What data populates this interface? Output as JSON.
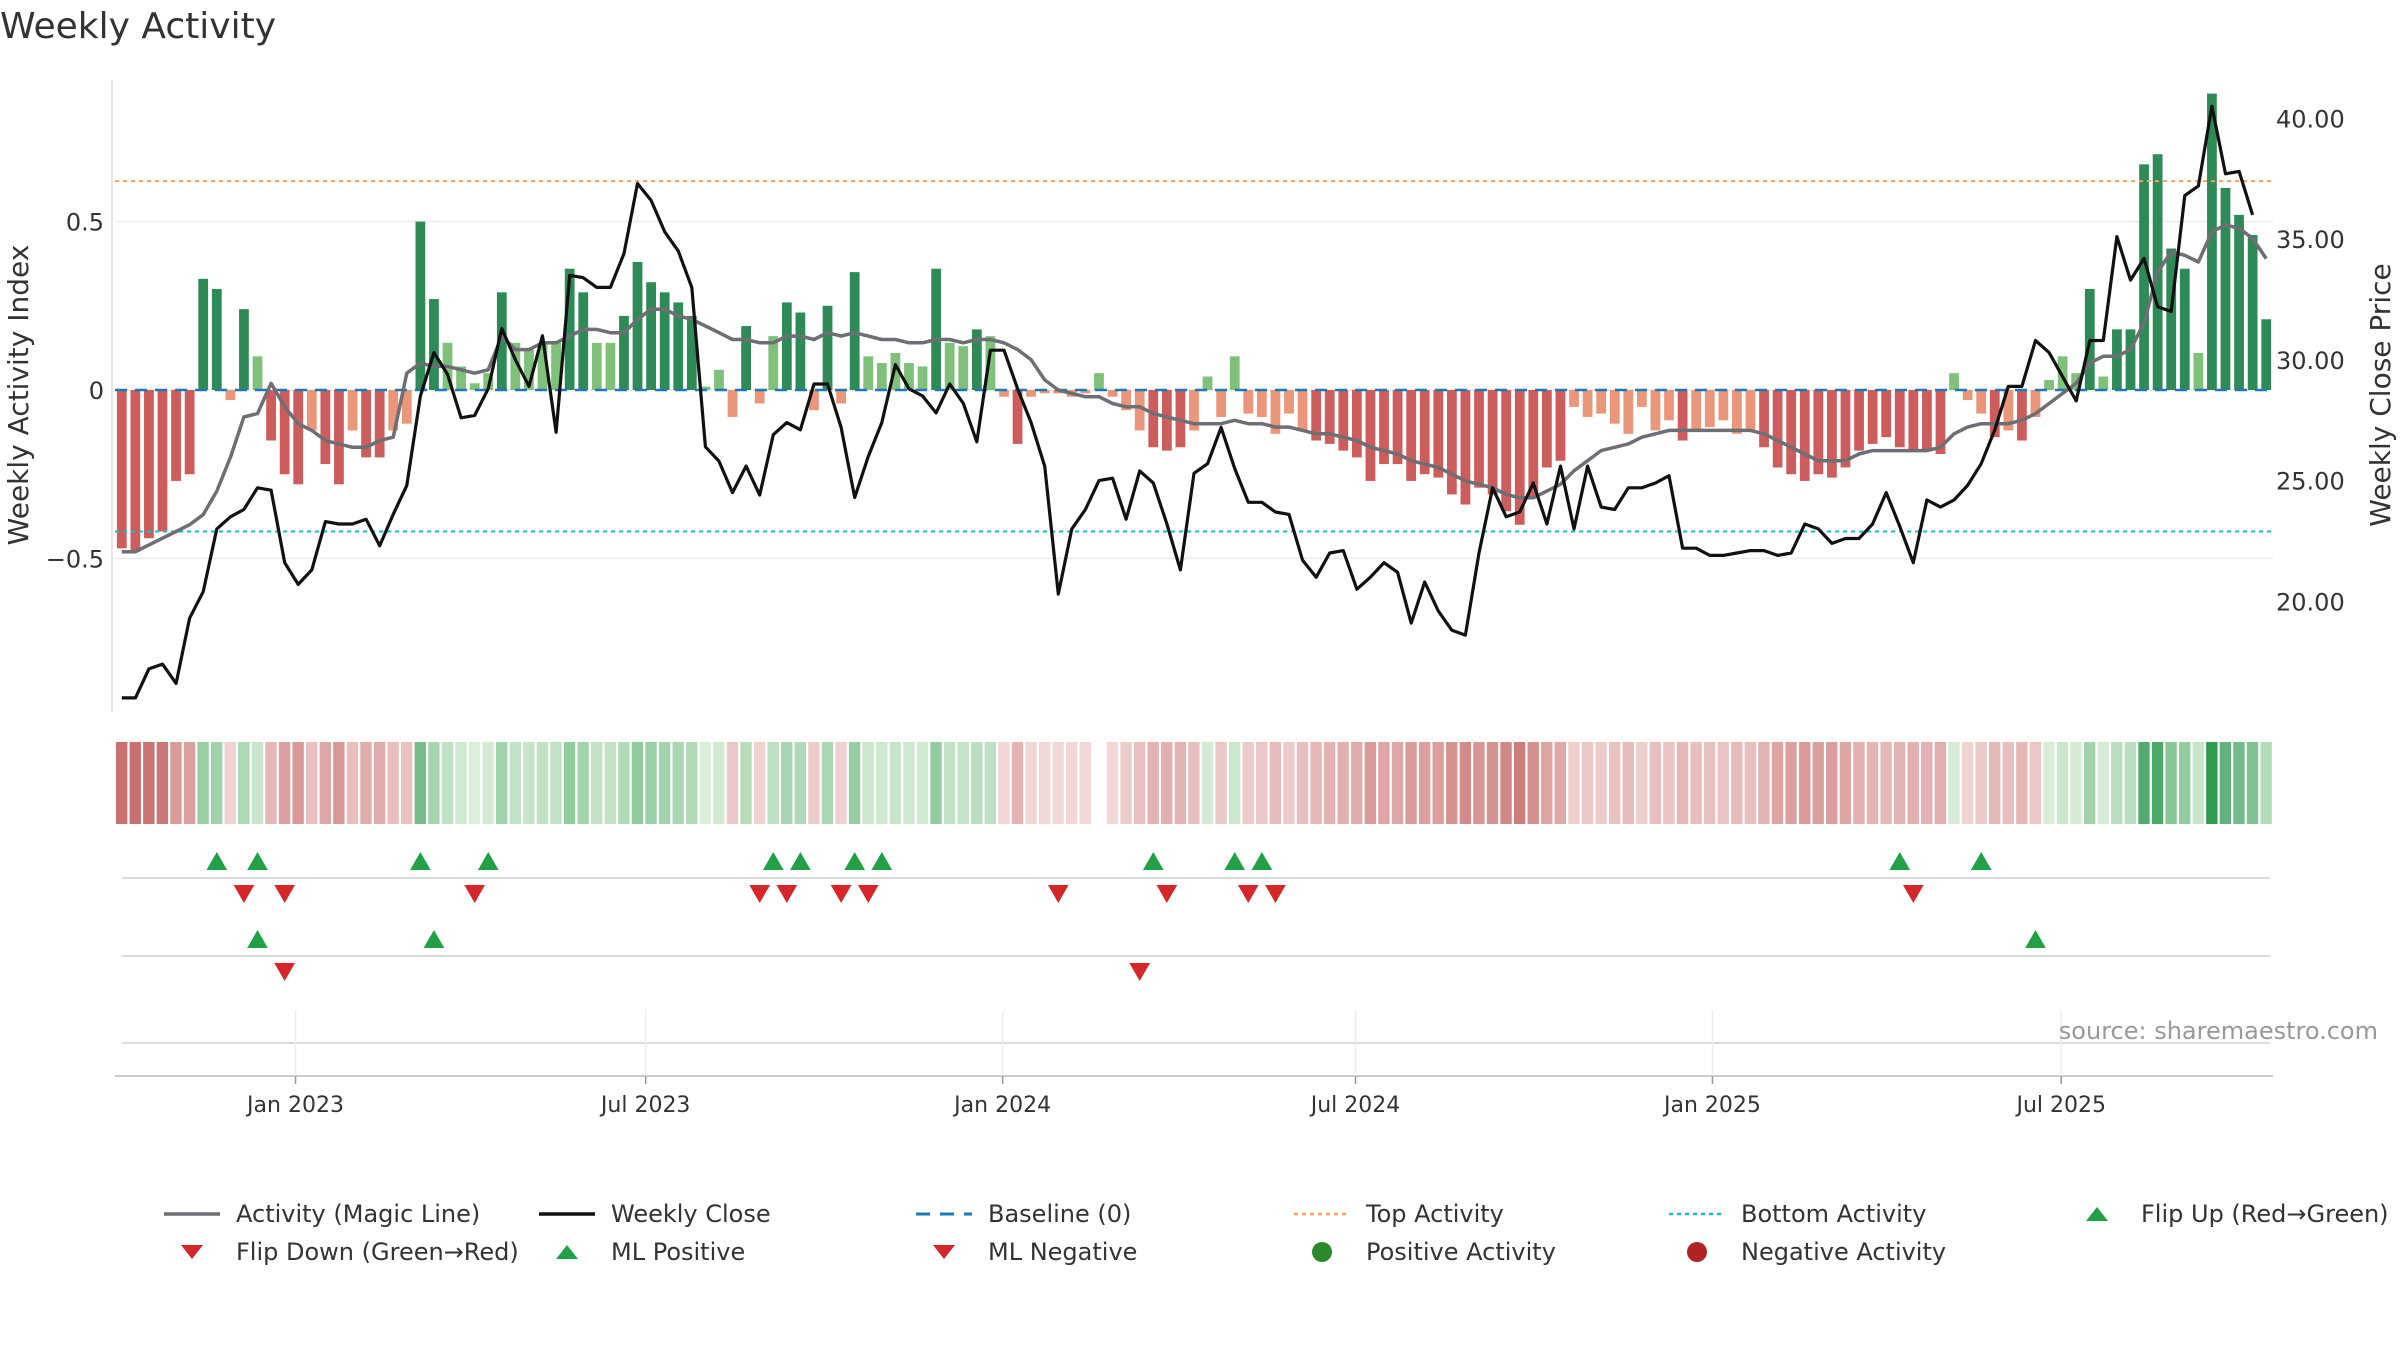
{
  "chart_data": {
    "type": "bar",
    "title": "Weekly Activity",
    "ylabel": "Weekly Activity Index",
    "y2label": "Weekly Close Price",
    "ylim": [
      -0.95,
      0.95
    ],
    "y2lim": [
      15.5,
      42.0
    ],
    "yticks": [
      {
        "v": 0.5,
        "label": "0.5"
      },
      {
        "v": 0,
        "label": "0"
      },
      {
        "v": -0.5,
        "label": "−0.5"
      }
    ],
    "y2ticks": [
      {
        "v": 40,
        "label": "40.00"
      },
      {
        "v": 35,
        "label": "35.00"
      },
      {
        "v": 30,
        "label": "30.00"
      },
      {
        "v": 25,
        "label": "25.00"
      },
      {
        "v": 20,
        "label": "20.00"
      }
    ],
    "x_axis": {
      "start": "2022-10-03",
      "weeks": 157
    },
    "xticks": [
      {
        "week": 13.3,
        "label": "Jan 2023"
      },
      {
        "week": 39.1,
        "label": "Jul 2023"
      },
      {
        "week": 65.4,
        "label": "Jan 2024"
      },
      {
        "week": 91.4,
        "label": "Jul 2024"
      },
      {
        "week": 117.7,
        "label": "Jan 2025"
      },
      {
        "week": 143.4,
        "label": "Jul 2025"
      }
    ],
    "top_activity": 0.62,
    "bottom_activity": -0.42,
    "weekly_activity": [
      -0.47,
      -0.48,
      -0.44,
      -0.42,
      -0.27,
      -0.25,
      0.33,
      0.3,
      -0.03,
      0.24,
      0.1,
      -0.15,
      -0.25,
      -0.28,
      -0.12,
      -0.22,
      -0.28,
      -0.12,
      -0.2,
      -0.2,
      -0.12,
      -0.1,
      0.5,
      0.27,
      0.14,
      0.07,
      0.02,
      0.05,
      0.29,
      0.14,
      0.12,
      0.14,
      0.14,
      0.36,
      0.29,
      0.14,
      0.14,
      0.22,
      0.38,
      0.32,
      0.29,
      0.26,
      0.22,
      0.01,
      0.06,
      -0.08,
      0.19,
      -0.04,
      0.16,
      0.26,
      0.23,
      -0.06,
      0.25,
      -0.04,
      0.35,
      0.1,
      0.08,
      0.11,
      0.08,
      0.07,
      0.36,
      0.14,
      0.13,
      0.18,
      0.16,
      -0.02,
      -0.16,
      -0.02,
      -0.01,
      -0.01,
      -0.02,
      -0.01,
      0.05,
      -0.02,
      -0.06,
      -0.12,
      -0.17,
      -0.18,
      -0.17,
      -0.12,
      0.04,
      -0.08,
      0.1,
      -0.07,
      -0.08,
      -0.13,
      -0.07,
      -0.12,
      -0.15,
      -0.16,
      -0.18,
      -0.2,
      -0.27,
      -0.22,
      -0.22,
      -0.27,
      -0.25,
      -0.26,
      -0.31,
      -0.34,
      -0.29,
      -0.31,
      -0.36,
      -0.4,
      -0.32,
      -0.23,
      -0.21,
      -0.05,
      -0.08,
      -0.07,
      -0.1,
      -0.13,
      -0.05,
      -0.12,
      -0.09,
      -0.15,
      -0.12,
      -0.11,
      -0.09,
      -0.13,
      -0.12,
      -0.17,
      -0.23,
      -0.25,
      -0.27,
      -0.25,
      -0.26,
      -0.23,
      -0.18,
      -0.16,
      -0.14,
      -0.17,
      -0.18,
      -0.18,
      -0.19,
      0.05,
      -0.03,
      -0.07,
      -0.14,
      -0.12,
      -0.15,
      -0.08,
      0.03,
      0.1,
      0.05,
      0.3,
      0.04,
      0.18,
      0.18,
      0.67,
      0.7,
      0.42,
      0.36,
      0.11,
      0.88,
      0.6,
      0.52,
      0.46,
      0.21
    ],
    "magic_line": [
      -0.48,
      -0.48,
      -0.46,
      -0.44,
      -0.42,
      -0.4,
      -0.37,
      -0.3,
      -0.2,
      -0.08,
      -0.07,
      0.02,
      -0.05,
      -0.1,
      -0.12,
      -0.15,
      -0.16,
      -0.17,
      -0.17,
      -0.15,
      -0.14,
      0.05,
      0.08,
      0.07,
      0.07,
      0.06,
      0.05,
      0.06,
      0.16,
      0.12,
      0.12,
      0.14,
      0.14,
      0.16,
      0.18,
      0.18,
      0.17,
      0.17,
      0.21,
      0.24,
      0.24,
      0.22,
      0.21,
      0.19,
      0.17,
      0.15,
      0.15,
      0.14,
      0.14,
      0.16,
      0.16,
      0.15,
      0.17,
      0.16,
      0.17,
      0.16,
      0.15,
      0.15,
      0.14,
      0.14,
      0.15,
      0.15,
      0.14,
      0.15,
      0.15,
      0.14,
      0.12,
      0.09,
      0.03,
      0.0,
      -0.01,
      -0.02,
      -0.02,
      -0.04,
      -0.05,
      -0.05,
      -0.07,
      -0.08,
      -0.09,
      -0.1,
      -0.1,
      -0.1,
      -0.09,
      -0.1,
      -0.1,
      -0.11,
      -0.11,
      -0.12,
      -0.13,
      -0.13,
      -0.14,
      -0.15,
      -0.17,
      -0.18,
      -0.19,
      -0.21,
      -0.22,
      -0.23,
      -0.25,
      -0.27,
      -0.28,
      -0.29,
      -0.31,
      -0.32,
      -0.32,
      -0.3,
      -0.28,
      -0.24,
      -0.21,
      -0.18,
      -0.17,
      -0.16,
      -0.14,
      -0.13,
      -0.12,
      -0.12,
      -0.12,
      -0.12,
      -0.12,
      -0.12,
      -0.12,
      -0.13,
      -0.15,
      -0.17,
      -0.19,
      -0.21,
      -0.21,
      -0.21,
      -0.19,
      -0.18,
      -0.18,
      -0.18,
      -0.18,
      -0.18,
      -0.17,
      -0.13,
      -0.11,
      -0.1,
      -0.1,
      -0.1,
      -0.09,
      -0.07,
      -0.04,
      -0.01,
      0.02,
      0.08,
      0.1,
      0.1,
      0.12,
      0.2,
      0.35,
      0.41,
      0.4,
      0.38,
      0.47,
      0.49,
      0.48,
      0.45,
      0.39
    ],
    "weekly_close": [
      16.0,
      16.0,
      17.2,
      17.4,
      16.6,
      19.3,
      20.4,
      23.0,
      23.5,
      23.8,
      24.7,
      24.6,
      21.6,
      20.7,
      21.3,
      23.3,
      23.2,
      23.2,
      23.4,
      22.3,
      23.6,
      24.8,
      28.5,
      30.3,
      29.4,
      27.6,
      27.7,
      28.8,
      31.3,
      30.0,
      28.9,
      31.0,
      27.0,
      33.5,
      33.4,
      33.0,
      33.0,
      34.4,
      37.3,
      36.6,
      35.3,
      34.5,
      33.0,
      26.4,
      25.8,
      24.5,
      25.6,
      24.4,
      26.9,
      27.4,
      27.1,
      29.0,
      29.0,
      27.2,
      24.3,
      26.0,
      27.4,
      29.8,
      28.8,
      28.5,
      27.8,
      29.0,
      28.2,
      26.6,
      30.4,
      30.4,
      28.8,
      27.4,
      25.6,
      20.3,
      23.0,
      23.8,
      25.0,
      25.1,
      23.4,
      25.4,
      24.9,
      23.2,
      21.3,
      25.3,
      25.7,
      27.2,
      25.5,
      24.1,
      24.1,
      23.7,
      23.6,
      21.7,
      21.0,
      22.0,
      22.1,
      20.5,
      21.0,
      21.6,
      21.2,
      19.1,
      20.8,
      19.6,
      18.8,
      18.6,
      22.0,
      24.7,
      23.5,
      23.7,
      24.9,
      23.2,
      25.6,
      23.0,
      25.6,
      23.9,
      23.8,
      24.7,
      24.7,
      24.9,
      25.2,
      22.2,
      22.2,
      21.9,
      21.9,
      22.0,
      22.1,
      22.1,
      21.9,
      22.0,
      23.2,
      23.0,
      22.4,
      22.6,
      22.6,
      23.2,
      24.5,
      23.1,
      21.6,
      24.2,
      23.9,
      24.2,
      24.8,
      25.7,
      27.1,
      28.9,
      28.9,
      30.8,
      30.3,
      29.3,
      28.3,
      30.8,
      30.8,
      35.1,
      33.3,
      34.2,
      32.2,
      32.0,
      36.8,
      37.2,
      40.5,
      37.7,
      37.8,
      36.0
    ],
    "flip_up_row1": [
      7.0,
      10.0,
      22.0,
      27.0,
      48.0,
      50.0,
      54.0,
      56.0,
      76.0,
      82.0,
      84.0,
      131.0,
      137.0
    ],
    "flip_down_row1": [
      9.0,
      12.0,
      26.0,
      47.0,
      49.0,
      53.0,
      55.0,
      69.0,
      77.0,
      83.0,
      85.0,
      132.0
    ],
    "ml_positive": [
      10.0,
      23.0,
      141.0
    ],
    "ml_negative": [
      12.0,
      75.0
    ],
    "source": "source: sharemaestro.com",
    "legend": [
      {
        "label": "Activity (Magic Line)",
        "kind": "line",
        "color": "#6e6e75"
      },
      {
        "label": "Weekly Close",
        "kind": "line",
        "color": "#111111"
      },
      {
        "label": "Baseline (0)",
        "kind": "dash",
        "color": "#1f77b4"
      },
      {
        "label": "Top Activity",
        "kind": "dot",
        "color": "#f4a460"
      },
      {
        "label": "Bottom Activity",
        "kind": "dot",
        "color": "#17becf"
      },
      {
        "label": "Flip Up (Red→Green)",
        "kind": "up",
        "color": "#22a046"
      },
      {
        "label": "Flip Down (Green→Red)",
        "kind": "down",
        "color": "#d62728"
      },
      {
        "label": "ML Positive",
        "kind": "up",
        "color": "#22a046"
      },
      {
        "label": "ML Negative",
        "kind": "down",
        "color": "#d62728"
      },
      {
        "label": "Positive Activity",
        "kind": "circle",
        "color": "#2a8a2a"
      },
      {
        "label": "Negative Activity",
        "kind": "circle",
        "color": "#b22222"
      }
    ]
  }
}
